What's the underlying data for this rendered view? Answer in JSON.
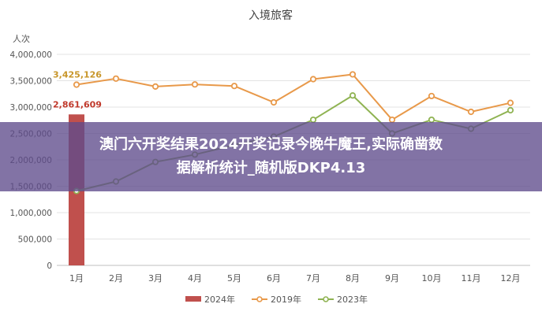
{
  "banner": {
    "line1": "澳门六开奖结果2024开奖记录今晚牛魔王,实际确凿数",
    "line2": "据解析统计_随机版DKP4.13"
  },
  "chart_data": {
    "type": "bar+line",
    "title": "入境旅客",
    "ylabel": "人次",
    "xlabel": "",
    "ylim": [
      0,
      4000000
    ],
    "yticks": [
      0,
      500000,
      1000000,
      1500000,
      2000000,
      2500000,
      3000000,
      3500000,
      4000000
    ],
    "ytick_labels": [
      "0",
      "500,000",
      "1,000,000",
      "1,500,000",
      "2,000,000",
      "2,500,000",
      "3,000,000",
      "3,500,000",
      "4,000,000"
    ],
    "categories": [
      "1月",
      "2月",
      "3月",
      "4月",
      "5月",
      "6月",
      "7月",
      "8月",
      "9月",
      "10月",
      "11月",
      "12月"
    ],
    "grid": true,
    "legend_position": "bottom",
    "series": [
      {
        "name": "2024年",
        "kind": "bar",
        "color": "#c0504d",
        "values": [
          2861609,
          null,
          null,
          null,
          null,
          null,
          null,
          null,
          null,
          null,
          null,
          null
        ],
        "data_label": "2,861,609",
        "label_color": "#c0392b"
      },
      {
        "name": "2019年",
        "kind": "line",
        "color": "#e8994a",
        "values": [
          3425126,
          3540000,
          3390000,
          3430000,
          3400000,
          3090000,
          3530000,
          3620000,
          2760000,
          3210000,
          2910000,
          3080000
        ],
        "data_label": "3,425,126",
        "label_color": "#c8962a"
      },
      {
        "name": "2023年",
        "kind": "line",
        "color": "#8fb352",
        "values": [
          1410000,
          1590000,
          1960000,
          2100000,
          2280000,
          2440000,
          2760000,
          3220000,
          2500000,
          2760000,
          2590000,
          2940000
        ]
      }
    ]
  }
}
